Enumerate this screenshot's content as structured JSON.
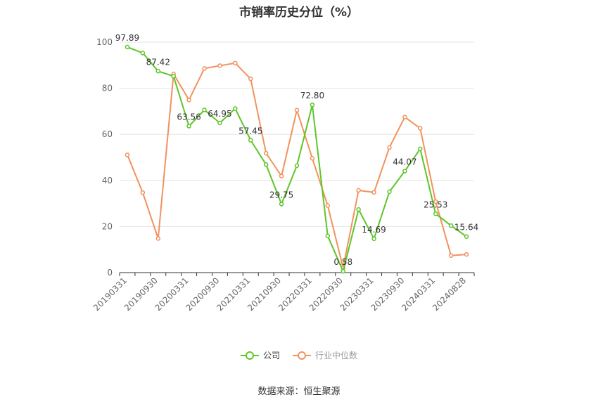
{
  "chart_data": {
    "type": "line",
    "title": "市销率历史分位（%）",
    "xlabel": "",
    "ylabel": "",
    "ylim": [
      0,
      100
    ],
    "yticks": [
      0,
      20,
      40,
      60,
      80,
      100
    ],
    "grid": true,
    "legend_position": "bottom",
    "x_tick_labels": [
      "20190331",
      "20190930",
      "20200331",
      "20200930",
      "20210331",
      "20210930",
      "20220331",
      "20220930",
      "20230331",
      "20230930",
      "20240331",
      "20240828"
    ],
    "x": [
      "20190331",
      "20190630",
      "20190930",
      "20191231",
      "20200331",
      "20200630",
      "20200930",
      "20201231",
      "20210331",
      "20210630",
      "20210930",
      "20211231",
      "20220331",
      "20220630",
      "20220930",
      "20221231",
      "20230331",
      "20230630",
      "20230930",
      "20231231",
      "20240331",
      "20240630",
      "20240828"
    ],
    "series": [
      {
        "name": "公司",
        "color": "#5ec629",
        "values": [
          97.89,
          95.3,
          87.42,
          85.2,
          63.56,
          70.6,
          64.95,
          71.2,
          57.45,
          46.9,
          29.75,
          46.4,
          72.8,
          15.9,
          0.58,
          27.4,
          14.69,
          35.1,
          44.07,
          53.7,
          25.53,
          20.4,
          15.64
        ],
        "data_labels": {
          "0": "97.89",
          "2": "87.42",
          "4": "63.56",
          "6": "64.95",
          "8": "57.45",
          "10": "29.75",
          "12": "72.80",
          "14": "0.58",
          "16": "14.69",
          "18": "44.07",
          "20": "25.53",
          "22": "15.64"
        }
      },
      {
        "name": "行业中位数",
        "color": "#f2925e",
        "values": [
          51.1,
          34.7,
          14.8,
          86.2,
          74.9,
          88.6,
          89.8,
          90.9,
          84.1,
          51.8,
          41.9,
          70.5,
          49.6,
          29.1,
          2.1,
          35.7,
          34.8,
          54.3,
          67.5,
          62.6,
          30.8,
          7.4,
          7.9
        ]
      }
    ]
  },
  "source_text": "数据来源：恒生聚源"
}
